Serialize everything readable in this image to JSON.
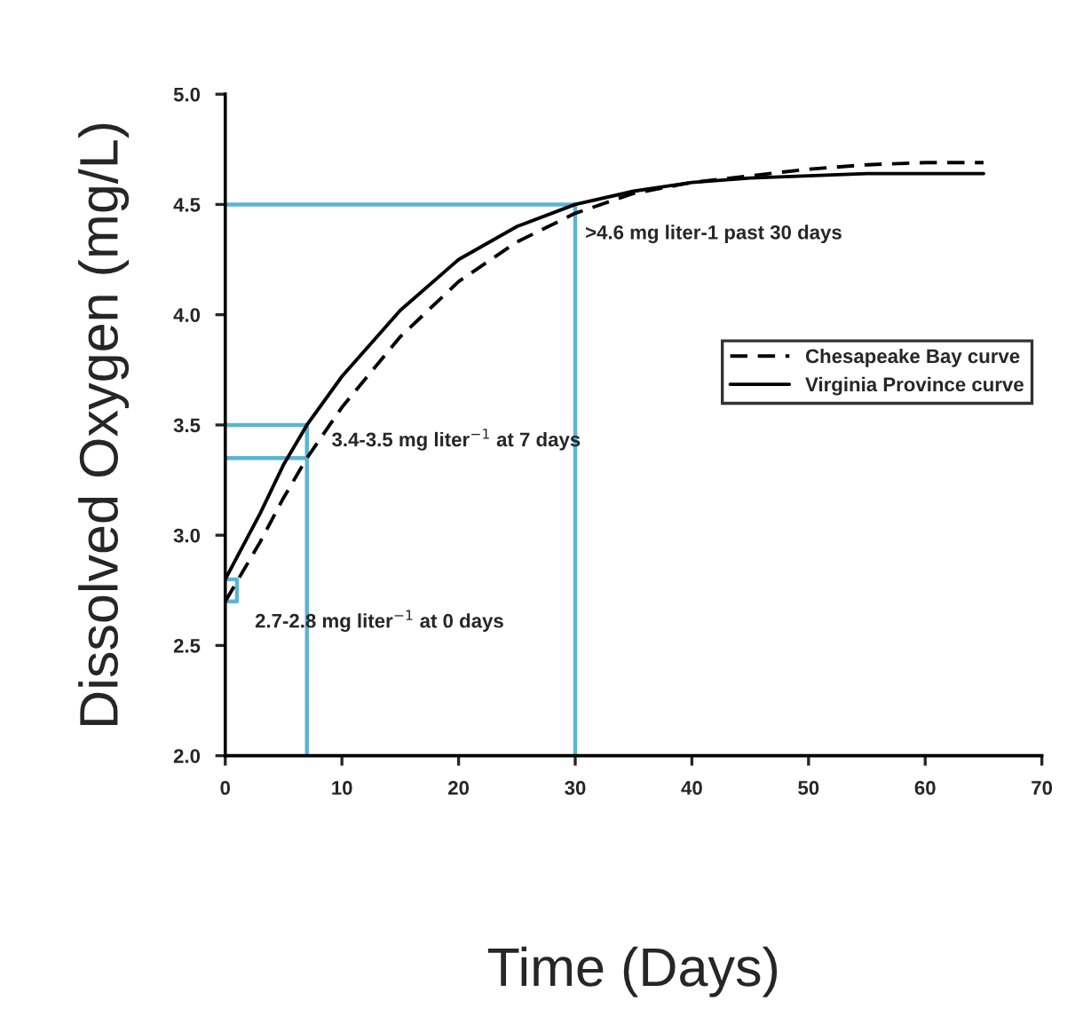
{
  "chart_data": {
    "type": "line",
    "xlabel": "Time (Days)",
    "ylabel": "Dissolved Oxygen (mg/L)",
    "xlim": [
      0,
      70
    ],
    "ylim": [
      2.0,
      5.0
    ],
    "xticks": [
      0,
      10,
      20,
      30,
      40,
      50,
      60,
      70
    ],
    "yticks": [
      {
        "value": 2.0,
        "label": "2.0"
      },
      {
        "value": 2.5,
        "label": "2.5"
      },
      {
        "value": 3.0,
        "label": "3.0"
      },
      {
        "value": 3.5,
        "label": "3.5"
      },
      {
        "value": 4.0,
        "label": "4.0"
      },
      {
        "value": 4.5,
        "label": "4.5"
      },
      {
        "value": 5.0,
        "label": "5.0"
      }
    ],
    "grid": false,
    "legend": "center right",
    "marker": "none",
    "series": [
      {
        "name": "Chesapeake Bay curve",
        "color": "#000000",
        "line_style": "dashed",
        "x": [
          0,
          3,
          5,
          7,
          10,
          15,
          20,
          25,
          30,
          35,
          40,
          45,
          50,
          55,
          60,
          65
        ],
        "values": [
          2.7,
          2.97,
          3.17,
          3.35,
          3.58,
          3.9,
          4.15,
          4.33,
          4.46,
          4.55,
          4.6,
          4.63,
          4.66,
          4.68,
          4.69,
          4.69
        ]
      },
      {
        "name": "Virginia Province curve",
        "color": "#000000",
        "line_style": "solid",
        "x": [
          0,
          3,
          5,
          7,
          10,
          15,
          20,
          25,
          30,
          35,
          40,
          45,
          50,
          55,
          60,
          65
        ],
        "values": [
          2.8,
          3.1,
          3.32,
          3.5,
          3.72,
          4.02,
          4.25,
          4.4,
          4.5,
          4.56,
          4.6,
          4.62,
          4.63,
          4.64,
          4.64,
          4.64
        ]
      },
      {
        "color": "#5ab4d6",
        "line_style": "solid",
        "x": [
          0,
          30,
          30
        ],
        "values": [
          4.5,
          4.5,
          2.0
        ]
      },
      {
        "color": "#5ab4d6",
        "line_style": "solid",
        "x": [
          0,
          7,
          7
        ],
        "values": [
          3.5,
          3.5,
          2.0
        ]
      },
      {
        "color": "#5ab4d6",
        "line_style": "solid",
        "x": [
          0,
          7
        ],
        "values": [
          3.35,
          3.35
        ]
      },
      {
        "color": "#5ab4d6",
        "line_style": "solid",
        "x": [
          0,
          1,
          1,
          0
        ],
        "values": [
          2.8,
          2.8,
          2.7,
          2.7
        ]
      }
    ],
    "annotations": [
      {
        "text": ">4.6 mg liter-1 past 30 days",
        "x": 30,
        "y": 4.5
      },
      {
        "text": "3.4-3.5 mg liter$^{−1}$ at 7 days",
        "x": 7,
        "y": 3.5
      },
      {
        "text": "2.7-2.8 mg liter$^{−1}$ at 0 days",
        "x": 0,
        "y": 2.7
      }
    ]
  }
}
